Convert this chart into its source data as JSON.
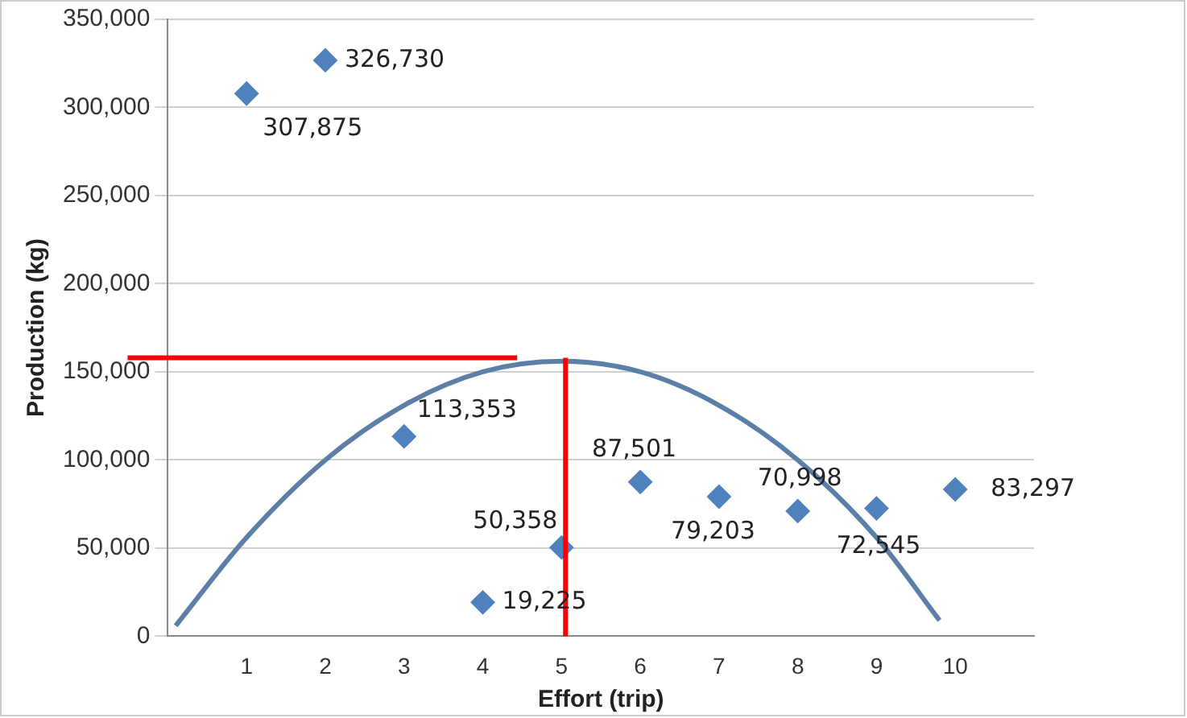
{
  "chart_data": {
    "type": "scatter",
    "xlabel": "Effort (trip)",
    "ylabel": "Production (kg)",
    "xlim": [
      0,
      11
    ],
    "xticks": [
      1,
      2,
      3,
      4,
      5,
      6,
      7,
      8,
      9,
      10
    ],
    "ylim": [
      0,
      350000
    ],
    "yticks": [
      {
        "value": 0,
        "label": "0"
      },
      {
        "value": 50000,
        "label": "50,000"
      },
      {
        "value": 100000,
        "label": "100,000"
      },
      {
        "value": 150000,
        "label": "150,000"
      },
      {
        "value": 200000,
        "label": "200,000"
      },
      {
        "value": 250000,
        "label": "250,000"
      },
      {
        "value": 300000,
        "label": "300,000"
      },
      {
        "value": 350000,
        "label": "350,000"
      }
    ],
    "grid": "y",
    "legend": false,
    "marker": "diamond",
    "series": [
      {
        "color": "#4f81bd",
        "x": [
          1,
          2,
          3,
          4,
          5,
          6,
          7,
          8,
          9,
          10
        ],
        "values": [
          307875,
          326730,
          113353,
          19225,
          50358,
          87501,
          79203,
          70998,
          72545,
          83297
        ],
        "value_labels": [
          "307,875",
          "326,730",
          "113,353",
          "19,225",
          "50,358",
          "87,501",
          "79,203",
          "70,998",
          "72,545",
          "83,297"
        ]
      },
      {
        "type": "line",
        "color": "#5b7fa6",
        "marker": "none",
        "x": [
          0.1,
          1,
          2,
          3,
          4,
          5,
          6,
          7,
          8,
          9,
          9.8
        ],
        "values": [
          6000,
          56000,
          100000,
          131000,
          150000,
          156000,
          150000,
          131000,
          100000,
          56000,
          9000
        ]
      }
    ],
    "ref_lines": [
      {
        "axis": "y",
        "value": 158000,
        "color": "#ff0000"
      },
      {
        "axis": "x",
        "value": 5.05,
        "color": "#ff0000"
      }
    ]
  }
}
